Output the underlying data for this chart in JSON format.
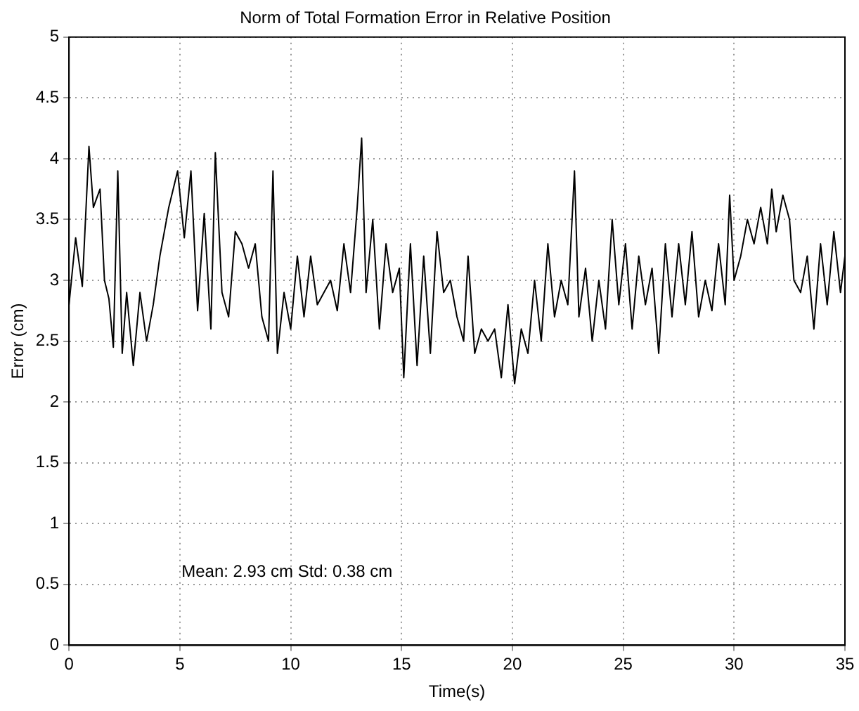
{
  "chart_data": {
    "type": "line",
    "title": "Norm of Total Formation Error in Relative Position",
    "xlabel": "Time(s)",
    "ylabel": "Error (cm)",
    "xlim": [
      0,
      35
    ],
    "ylim": [
      0,
      5
    ],
    "xticks": [
      0,
      5,
      10,
      15,
      20,
      25,
      30,
      35
    ],
    "yticks": [
      0,
      0.5,
      1,
      1.5,
      2,
      2.5,
      3,
      3.5,
      4,
      4.5,
      5
    ],
    "grid": true,
    "legend": false,
    "annotations": [
      "Mean: 2.93 cm Std: 0.38 cm"
    ],
    "series": [
      {
        "color": "#000000",
        "x": [
          0,
          0.3,
          0.6,
          0.9,
          1.1,
          1.4,
          1.6,
          1.8,
          2.0,
          2.2,
          2.4,
          2.6,
          2.9,
          3.2,
          3.5,
          3.8,
          4.1,
          4.5,
          4.9,
          5.2,
          5.5,
          5.8,
          6.1,
          6.4,
          6.6,
          6.9,
          7.2,
          7.5,
          7.8,
          8.1,
          8.4,
          8.7,
          9.0,
          9.2,
          9.4,
          9.7,
          10.0,
          10.3,
          10.6,
          10.9,
          11.2,
          11.5,
          11.8,
          12.1,
          12.4,
          12.7,
          13.0,
          13.2,
          13.4,
          13.7,
          14.0,
          14.3,
          14.6,
          14.9,
          15.1,
          15.4,
          15.7,
          16.0,
          16.3,
          16.6,
          16.9,
          17.2,
          17.5,
          17.8,
          18.0,
          18.3,
          18.6,
          18.9,
          19.2,
          19.5,
          19.8,
          20.1,
          20.4,
          20.7,
          21.0,
          21.3,
          21.6,
          21.9,
          22.2,
          22.5,
          22.8,
          23.0,
          23.3,
          23.6,
          23.9,
          24.2,
          24.5,
          24.8,
          25.1,
          25.4,
          25.7,
          26.0,
          26.3,
          26.6,
          26.9,
          27.2,
          27.5,
          27.8,
          28.1,
          28.4,
          28.7,
          29.0,
          29.3,
          29.6,
          29.8,
          30.0,
          30.3,
          30.6,
          30.9,
          31.2,
          31.5,
          31.7,
          31.9,
          32.2,
          32.5,
          32.7,
          33.0,
          33.3,
          33.6,
          33.9,
          34.2,
          34.5,
          34.8,
          35.0
        ],
        "values": [
          2.8,
          3.35,
          2.95,
          4.1,
          3.6,
          3.75,
          3.0,
          2.85,
          2.45,
          3.9,
          2.4,
          2.9,
          2.3,
          2.9,
          2.5,
          2.8,
          3.2,
          3.6,
          3.9,
          3.35,
          3.9,
          2.75,
          3.55,
          2.6,
          4.05,
          2.9,
          2.7,
          3.4,
          3.3,
          3.1,
          3.3,
          2.7,
          2.5,
          3.9,
          2.4,
          2.9,
          2.6,
          3.2,
          2.7,
          3.2,
          2.8,
          2.9,
          3.0,
          2.75,
          3.3,
          2.9,
          3.6,
          4.17,
          2.9,
          3.5,
          2.6,
          3.3,
          2.9,
          3.1,
          2.2,
          3.3,
          2.3,
          3.2,
          2.4,
          3.4,
          2.9,
          3.0,
          2.7,
          2.5,
          3.2,
          2.4,
          2.6,
          2.5,
          2.6,
          2.2,
          2.8,
          2.15,
          2.6,
          2.4,
          3.0,
          2.5,
          3.3,
          2.7,
          3.0,
          2.8,
          3.9,
          2.7,
          3.1,
          2.5,
          3.0,
          2.6,
          3.5,
          2.8,
          3.3,
          2.6,
          3.2,
          2.8,
          3.1,
          2.4,
          3.3,
          2.7,
          3.3,
          2.8,
          3.4,
          2.7,
          3.0,
          2.75,
          3.3,
          2.8,
          3.7,
          3.0,
          3.2,
          3.5,
          3.3,
          3.6,
          3.3,
          3.75,
          3.4,
          3.7,
          3.5,
          3.0,
          2.9,
          3.2,
          2.6,
          3.3,
          2.8,
          3.4,
          2.9,
          3.2
        ]
      }
    ]
  }
}
